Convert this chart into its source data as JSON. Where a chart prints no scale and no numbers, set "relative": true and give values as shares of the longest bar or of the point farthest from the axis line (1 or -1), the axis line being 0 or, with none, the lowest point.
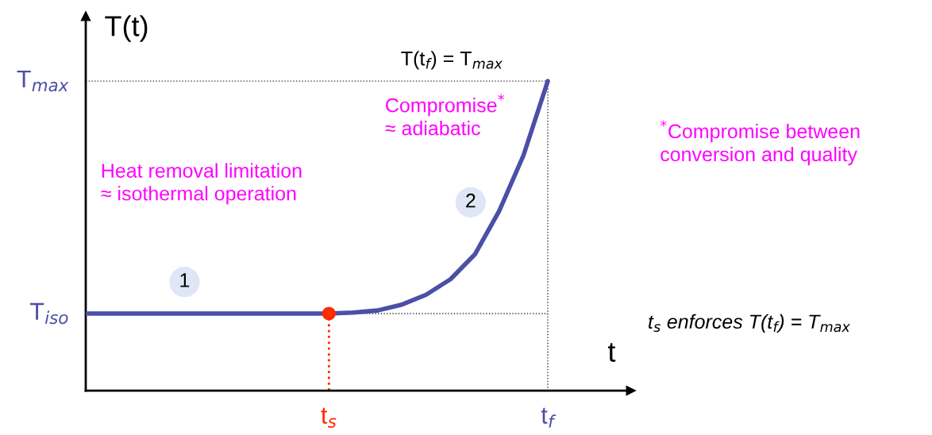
{
  "chart_data": {
    "type": "line",
    "relative": true,
    "xlabel": "t",
    "ylabel": "T(t)",
    "tick_labels": "x",
    "categories": [
      null,
      null,
      null,
      null,
      null,
      null,
      null,
      null,
      null,
      null,
      "t$_{s}$",
      null,
      null,
      null,
      null,
      null,
      null,
      null,
      null,
      "t$_{f}$"
    ],
    "series": [
      {
        "color": "#4b4fa6",
        "marker": "none",
        "line_style": "solid",
        "values": [
          0.249,
          0.249,
          0.249,
          0.249,
          0.249,
          0.249,
          0.249,
          0.249,
          0.249,
          0.249,
          0.249,
          0.252,
          0.259,
          0.278,
          0.31,
          0.36,
          0.44,
          0.58,
          0.76,
          1
        ]
      },
      {
        "type": "scatter",
        "color": "#ff2a00",
        "marker": "circle",
        "values": [
          null,
          null,
          null,
          null,
          null,
          null,
          null,
          null,
          null,
          null,
          0.249,
          null,
          null,
          null,
          null,
          null,
          null,
          null,
          null,
          null
        ]
      }
    ],
    "ref_lines": [
      {
        "axis": "y",
        "value": 1,
        "label": "T$_{max}$",
        "color": "#333333",
        "line_style": "dotted"
      },
      {
        "axis": "y",
        "value": 0.249,
        "label": "T$_{iso}$",
        "color": "#333333",
        "line_style": "dotted"
      }
    ],
    "annotations": [
      "1",
      "2",
      "T(t$_{f}$) = T$_{max}$",
      "Heat removal limitation\n≈ isothermal operation",
      "Compromise$^{*}$\n≈ adiabatic",
      "$^{*}$Compromise between\nconversion and quality",
      "t$_{s}$ enforces T(t$_{f}$) = T$_{max}$"
    ]
  }
}
